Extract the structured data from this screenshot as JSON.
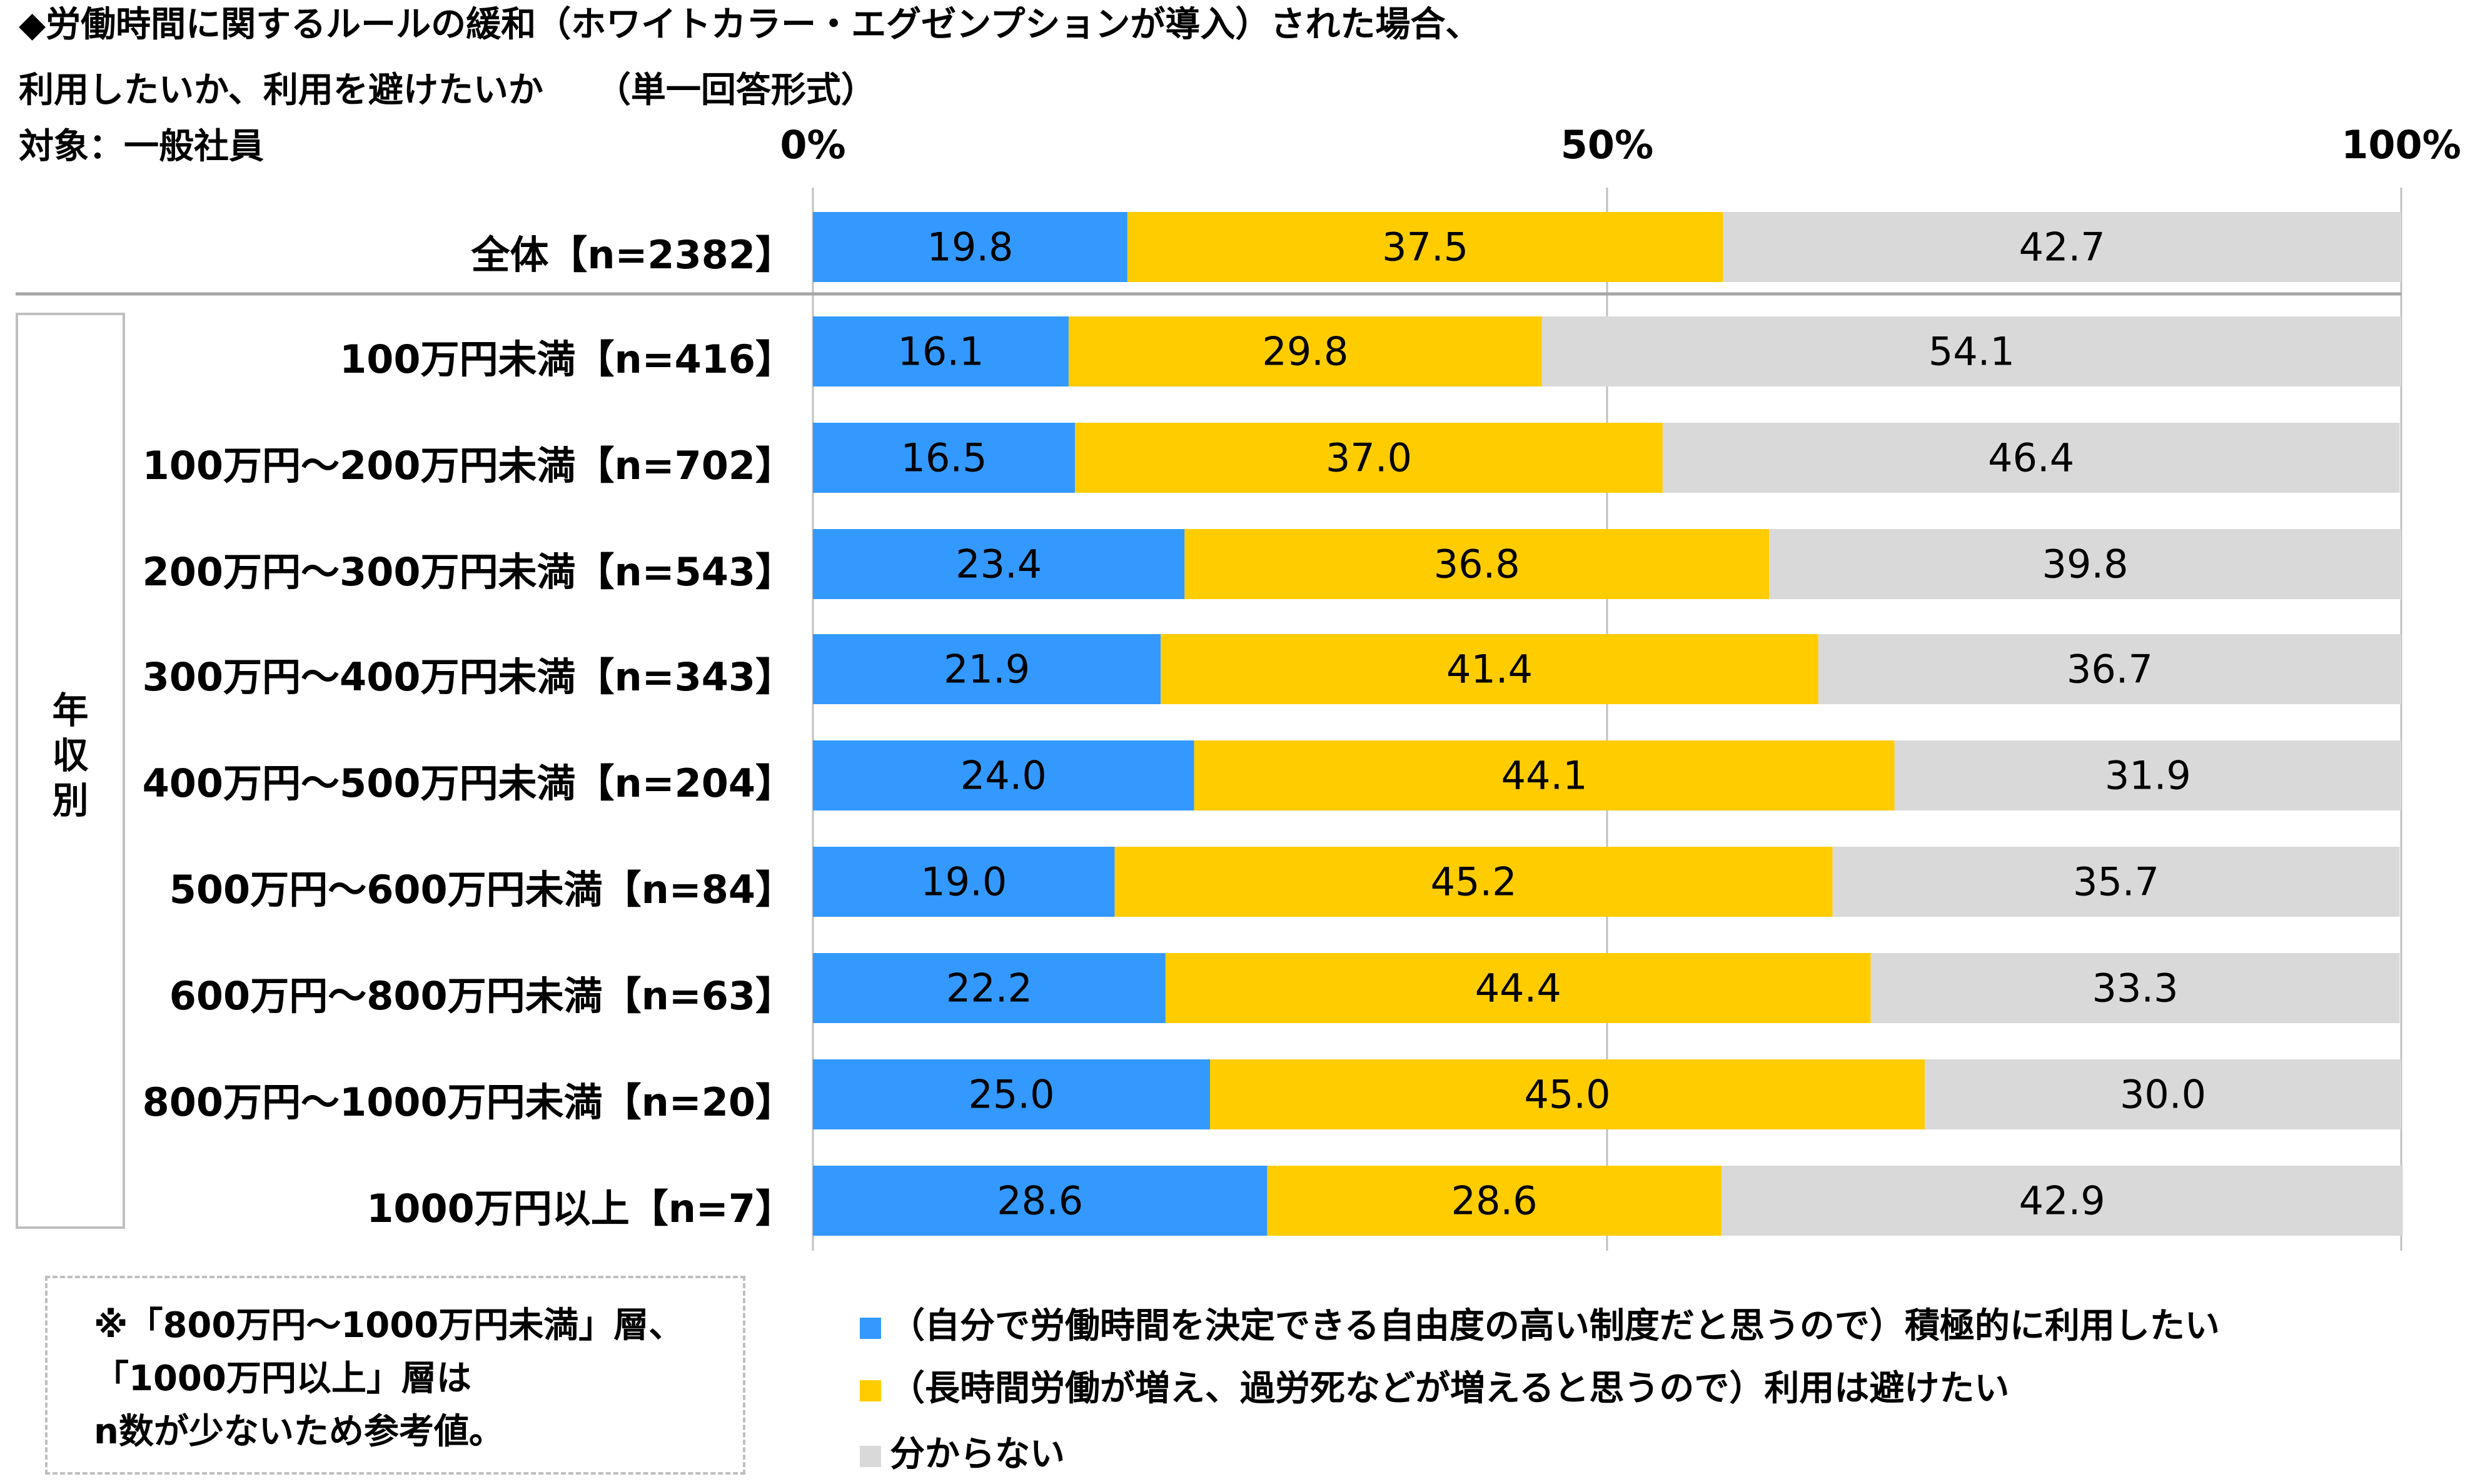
{
  "title": {
    "line1": "◆労働時間に関するルールの緩和（ホワイトカラー・エグゼンプションが導入）された場合、",
    "line2": "利用したいか、利用を避けたいか　　（単一回答形式）",
    "line3": "対象：一般社員"
  },
  "group_label": "年収別",
  "note": {
    "line1": "※「800万円～1000万円未満」層、",
    "line2": "「1000万円以上」層は",
    "line3": "n数が少ないため参考値。"
  },
  "colors": {
    "series1": "#3399ff",
    "series2": "#ffcc00",
    "series3": "#d9d9d9",
    "grid": "#c0c0c0",
    "separator": "#a6a6a6"
  },
  "chart_data": {
    "type": "bar",
    "orientation": "horizontal",
    "stacked": true,
    "xlim": [
      0,
      100
    ],
    "x_ticks": [
      "0%",
      "50%",
      "100%"
    ],
    "categories": [
      "全体【n=2382】",
      "100万円未満【n=416】",
      "100万円～200万円未満【n=702】",
      "200万円～300万円未満【n=543】",
      "300万円～400万円未満【n=343】",
      "400万円～500万円未満【n=204】",
      "500万円～600万円未満【n=84】",
      "600万円～800万円未満【n=63】",
      "800万円～1000万円未満【n=20】",
      "1000万円以上【n=7】"
    ],
    "series": [
      {
        "name": "（自分で労働時間を決定できる自由度の高い制度だと思うので）積極的に利用したい",
        "color": "#3399ff",
        "values": [
          19.8,
          16.1,
          16.5,
          23.4,
          21.9,
          24.0,
          19.0,
          22.2,
          25.0,
          28.6
        ]
      },
      {
        "name": "（長時間労働が増え、過労死などが増えると思うので）利用は避けたい",
        "color": "#ffcc00",
        "values": [
          37.5,
          29.8,
          37.0,
          36.8,
          41.4,
          44.1,
          45.2,
          44.4,
          45.0,
          28.6
        ]
      },
      {
        "name": "分からない",
        "color": "#d9d9d9",
        "values": [
          42.7,
          54.1,
          46.4,
          39.8,
          36.7,
          31.9,
          35.7,
          33.3,
          30.0,
          42.9
        ]
      }
    ],
    "legend_position": "bottom-right",
    "grid": "vertical at 50%"
  }
}
